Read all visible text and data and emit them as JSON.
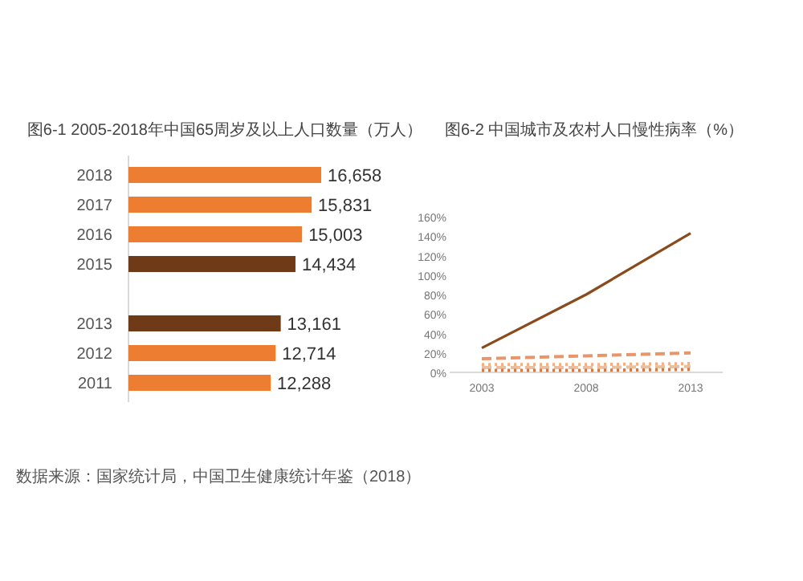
{
  "chart_data": [
    {
      "type": "bar",
      "orientation": "horizontal",
      "title": "图6-1 2005-2018年中国65周岁及以上人口数量（万人）",
      "categories": [
        "2018",
        "2017",
        "2016",
        "2015",
        null,
        "2013",
        "2012",
        "2011"
      ],
      "values": [
        16658,
        15831,
        15003,
        14434,
        null,
        13161,
        12714,
        12288
      ],
      "value_labels": [
        "16,658",
        "15,831",
        "15,003",
        "14,434",
        null,
        "13,161",
        "12,714",
        "12,288"
      ],
      "colors": [
        "#ed7d31",
        "#ed7d31",
        "#ed7d31",
        "#6e3a17",
        null,
        "#6e3a17",
        "#ed7d31",
        "#ed7d31"
      ],
      "annotations": [
        "数据来源：国家统计局，中国卫生健康统计年鉴（2018）"
      ]
    },
    {
      "type": "line",
      "title": "图6-2 中国城市及农村人口慢性病率（%）",
      "categories": [
        "2003",
        "2008",
        "2013"
      ],
      "ylim": [
        0,
        160
      ],
      "yticks": [
        {
          "value": 0,
          "label": "0%"
        },
        {
          "value": 20,
          "label": "20%"
        },
        {
          "value": 40,
          "label": "40%"
        },
        {
          "value": 60,
          "label": "60%"
        },
        {
          "value": 80,
          "label": "80%"
        },
        {
          "value": 100,
          "label": "100%"
        },
        {
          "value": 120,
          "label": "120%"
        },
        {
          "value": 140,
          "label": "140%"
        },
        {
          "value": 160,
          "label": "160%"
        }
      ],
      "series": [
        {
          "color": "#8b4a1c",
          "line_style": "solid",
          "values": [
            25,
            80,
            143
          ]
        },
        {
          "color": "#e8956a",
          "line_style": "dashed",
          "values": [
            14,
            17,
            20
          ]
        },
        {
          "color": "#f0b285",
          "line_style": "dotted",
          "values": [
            8,
            8,
            9
          ]
        },
        {
          "color": "#e9bf9f",
          "line_style": "dashed",
          "values": [
            5,
            5,
            6
          ]
        },
        {
          "color": "#d07a48",
          "line_style": "dotted",
          "values": [
            2,
            2,
            3
          ]
        }
      ]
    }
  ]
}
